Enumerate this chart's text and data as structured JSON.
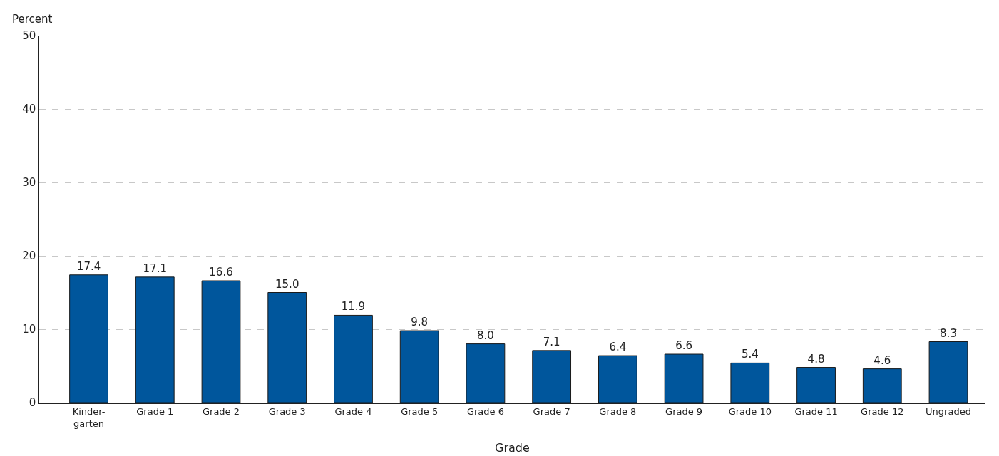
{
  "chart_data": {
    "type": "bar",
    "xlabel": "Grade",
    "ylabel": "Percent",
    "categories": [
      "Kinder-\ngarten",
      "Grade 1",
      "Grade 2",
      "Grade 3",
      "Grade 4",
      "Grade 5",
      "Grade 6",
      "Grade 7",
      "Grade 8",
      "Grade 9",
      "Grade 10",
      "Grade 11",
      "Grade 12",
      "Ungraded"
    ],
    "values": [
      17.4,
      17.1,
      16.6,
      15.0,
      11.9,
      9.8,
      8.0,
      7.1,
      6.4,
      6.6,
      5.4,
      4.8,
      4.6,
      8.3
    ],
    "value_labels": [
      "17.4",
      "17.1",
      "16.6",
      "15.0",
      "11.9",
      "9.8",
      "8.0",
      "7.1",
      "6.4",
      "6.6",
      "5.4",
      "4.8",
      "4.6",
      "8.3"
    ],
    "color": "#00569c",
    "ylim": [
      0,
      50
    ],
    "yticks": [
      0,
      10,
      20,
      30,
      40,
      50
    ],
    "grid": "y",
    "legend": false
  }
}
